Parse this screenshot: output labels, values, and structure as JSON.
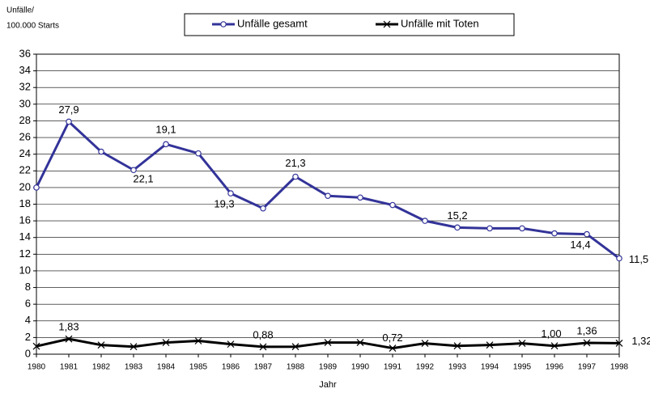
{
  "chart_data": {
    "type": "line",
    "y_label": [
      "Unfälle/",
      "100.000 Starts"
    ],
    "x_label": "Jahr",
    "categories": [
      "1980",
      "1981",
      "1982",
      "1983",
      "1984",
      "1985",
      "1986",
      "1987",
      "1988",
      "1989",
      "1990",
      "1991",
      "1992",
      "1993",
      "1994",
      "1995",
      "1996",
      "1997",
      "1998"
    ],
    "series": [
      {
        "name": "Unfälle gesamt",
        "color": "#333399",
        "marker": "circle",
        "values": [
          20,
          27.9,
          24.3,
          22.1,
          25.2,
          24.1,
          19.3,
          17.5,
          21.3,
          19.0,
          18.8,
          17.9,
          16.0,
          15.2,
          15.1,
          15.1,
          14.5,
          14.4,
          11.5
        ],
        "value_labels": [
          null,
          "27,9",
          null,
          "22,1",
          null,
          null,
          "19,3",
          null,
          "21,3",
          null,
          null,
          null,
          null,
          "15,2",
          null,
          null,
          null,
          "14,4",
          "11,5"
        ]
      },
      {
        "name": "Unfälle mit Toten",
        "color": "#000000",
        "marker": "x",
        "values": [
          0.95,
          1.83,
          1.1,
          0.9,
          1.4,
          1.6,
          1.2,
          0.88,
          0.9,
          1.4,
          1.4,
          0.72,
          1.3,
          1.0,
          1.1,
          1.3,
          1.0,
          1.36,
          1.32
        ],
        "value_labels": [
          null,
          "1,83",
          null,
          null,
          null,
          null,
          null,
          "0,88",
          null,
          null,
          null,
          "0,72",
          null,
          null,
          null,
          null,
          "1,00",
          "1,36",
          "1,32"
        ]
      }
    ],
    "annotations": [
      "19,1"
    ],
    "ylim": [
      0,
      36
    ],
    "yticks": [
      0,
      2,
      4,
      6,
      8,
      10,
      12,
      14,
      16,
      18,
      20,
      22,
      24,
      26,
      28,
      30,
      32,
      34,
      36
    ],
    "grid": true
  }
}
